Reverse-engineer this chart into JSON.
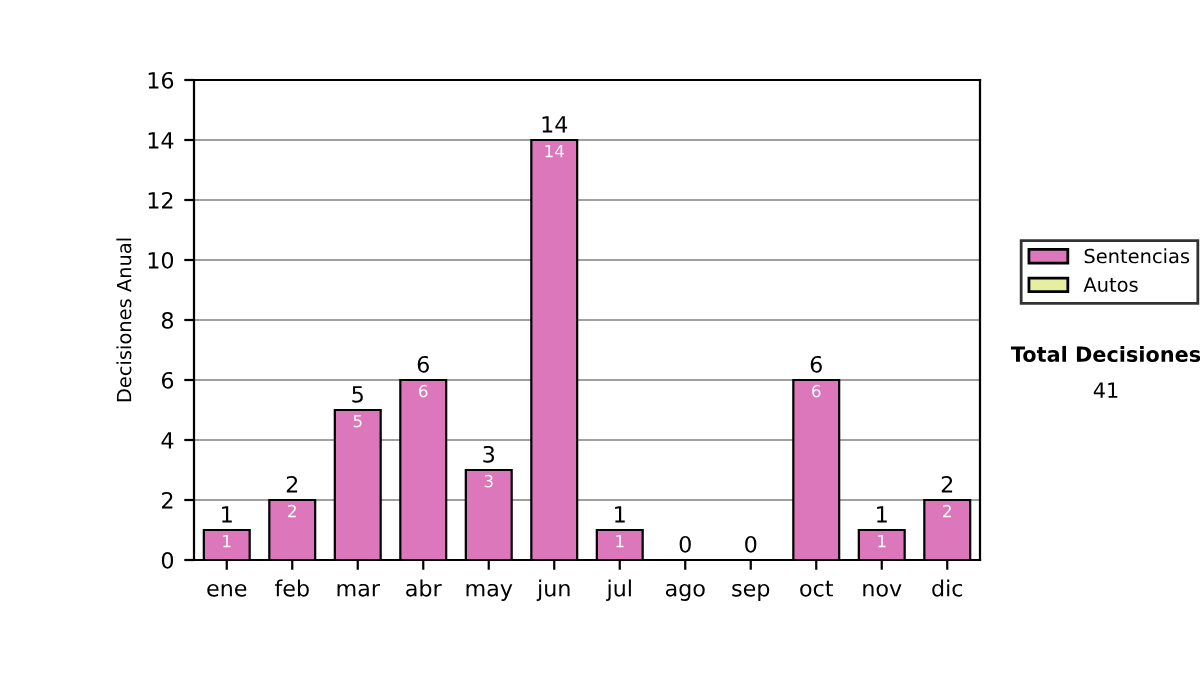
{
  "chart_data": {
    "type": "bar",
    "stacked": true,
    "ylabel": "Decisiones Anual",
    "categories": [
      "ene",
      "feb",
      "mar",
      "abr",
      "may",
      "jun",
      "jul",
      "ago",
      "sep",
      "oct",
      "nov",
      "dic"
    ],
    "series": [
      {
        "name": "Sentencias",
        "color": "#dd77bb",
        "values": [
          1,
          2,
          5,
          6,
          3,
          14,
          1,
          0,
          0,
          6,
          1,
          2
        ],
        "value_labels": [
          "1",
          "2",
          "5",
          "6",
          "3",
          "14",
          "1",
          null,
          null,
          "6",
          "1",
          "2"
        ]
      },
      {
        "name": "Autos",
        "color": "#e6eea0",
        "values": [
          0,
          0,
          0,
          0,
          0,
          0,
          0,
          0,
          0,
          0,
          0,
          0
        ]
      }
    ],
    "totals": [
      "1",
      "2",
      "5",
      "6",
      "3",
      "14",
      "1",
      "0",
      "0",
      "6",
      "1",
      "2"
    ],
    "ylim": [
      0,
      16
    ],
    "yticks": [
      0,
      2,
      4,
      6,
      8,
      10,
      12,
      14,
      16
    ],
    "grid": "y",
    "legend": "right",
    "annotations": [
      "Total Decisiones",
      "41"
    ]
  }
}
